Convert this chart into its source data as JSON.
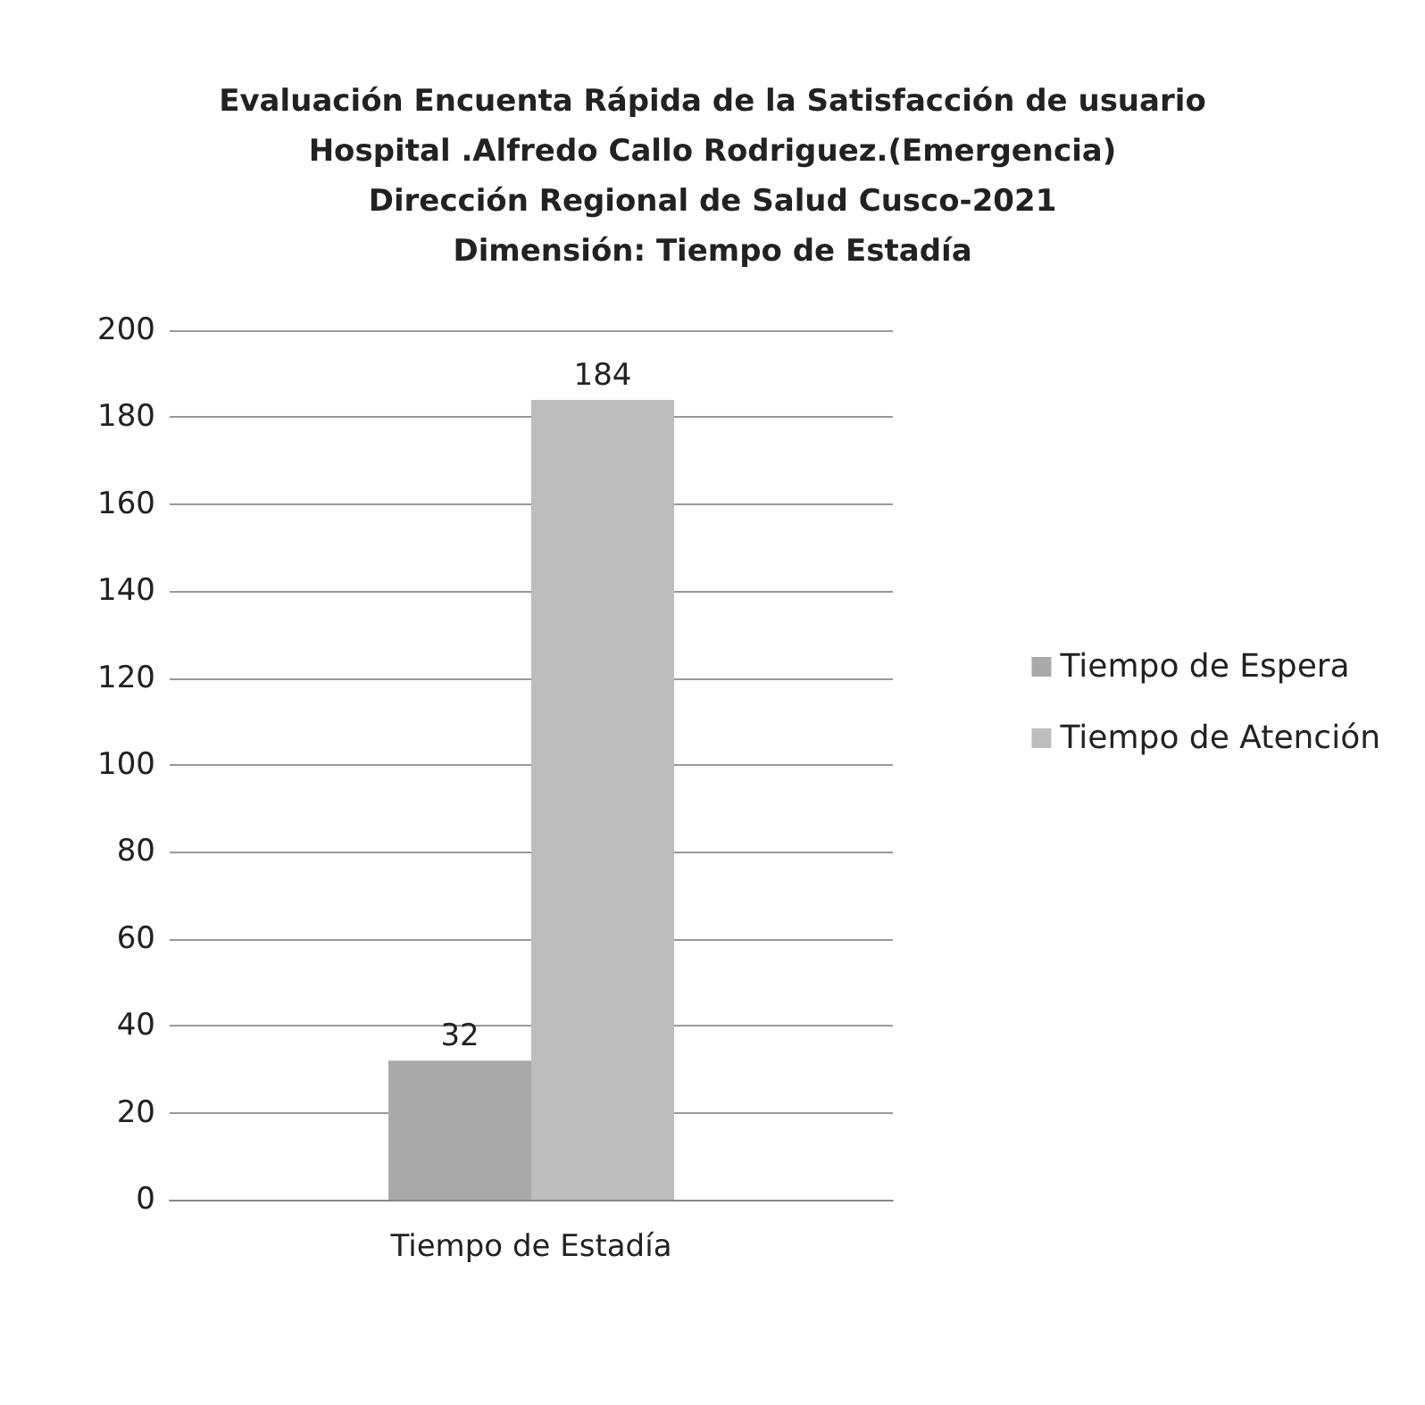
{
  "chart_data": {
    "type": "bar",
    "title": "Evaluación Encuenta Rápida de la Satisfacción de usuario\nHospital .Alfredo Callo Rodriguez.(Emergencia)\nDirección Regional de Salud Cusco-2021\nDimensión: Tiempo de Estadía",
    "categories": [
      "Tiempo de Estadía"
    ],
    "series": [
      {
        "name": "Tiempo de Espera",
        "color": "#a9a9a9",
        "values": [
          32
        ]
      },
      {
        "name": "Tiempo de Atención",
        "color": "#bdbdbd",
        "values": [
          184
        ]
      }
    ],
    "ylim": [
      0,
      200
    ],
    "yticks": [
      0,
      20,
      40,
      60,
      80,
      100,
      120,
      140,
      160,
      180,
      200
    ],
    "grid": "y",
    "legend": "right",
    "data_labels": true
  }
}
